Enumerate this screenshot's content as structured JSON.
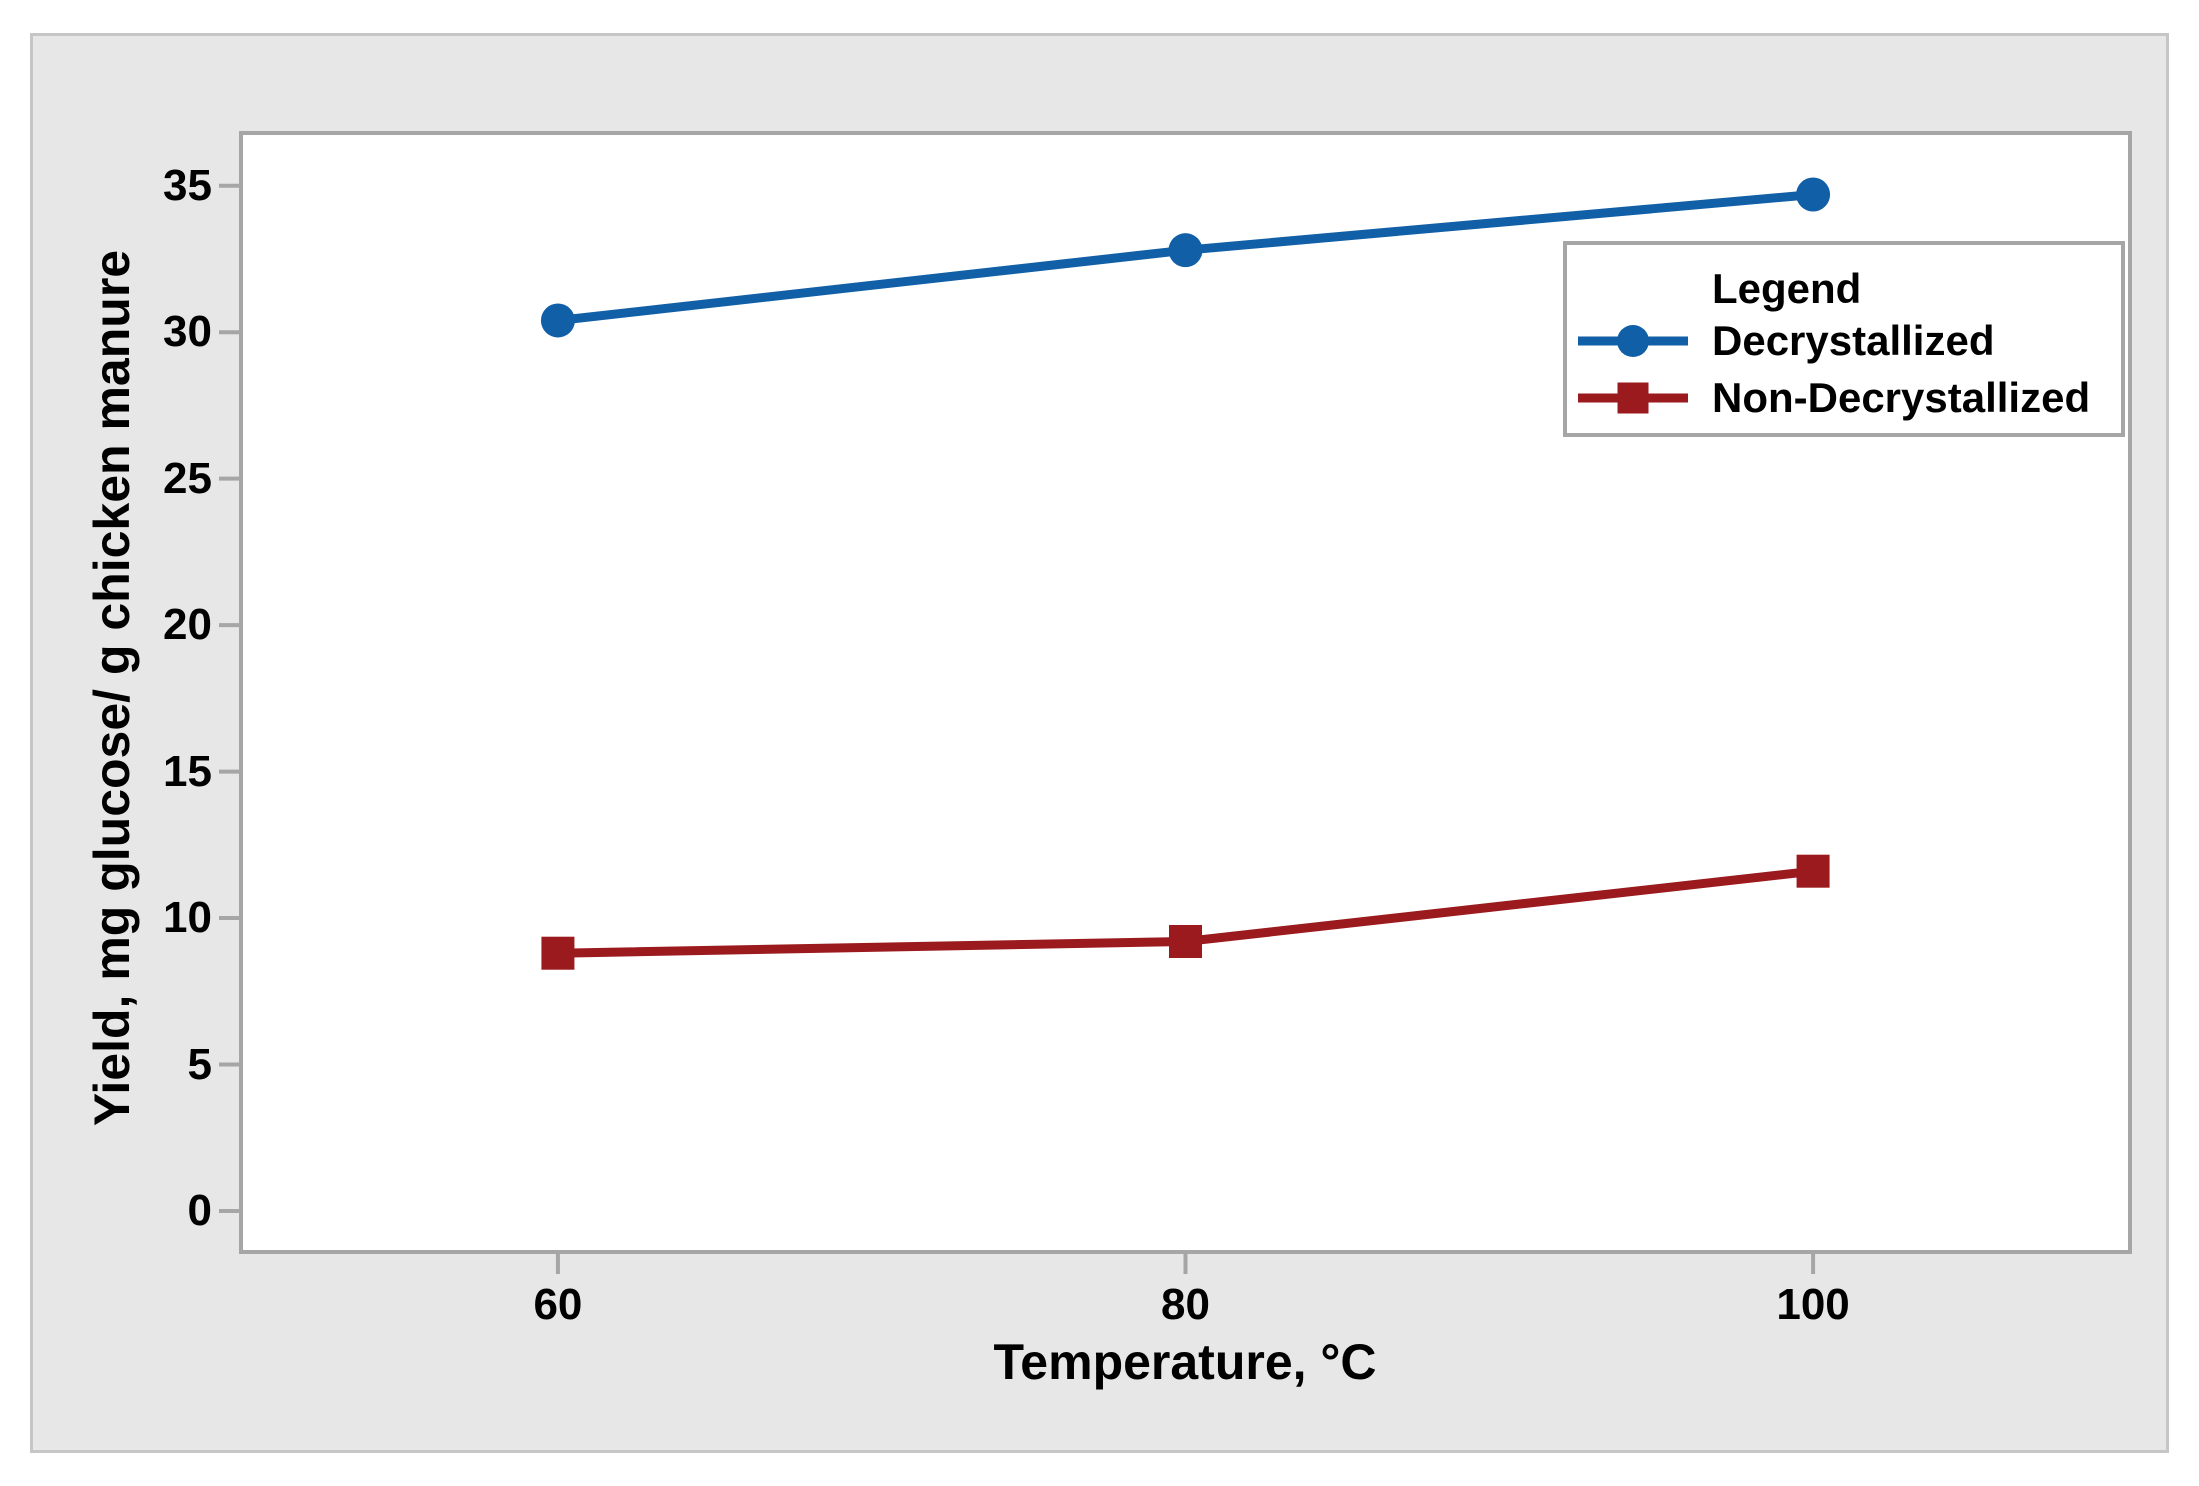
{
  "chart_data": {
    "type": "line",
    "x": [
      60,
      80,
      100
    ],
    "xticks": [
      60,
      80,
      100
    ],
    "yticks": [
      0,
      5,
      10,
      15,
      20,
      25,
      30,
      35
    ],
    "xlim": [
      49.9,
      110.1
    ],
    "ylim": [
      -1.4,
      36.8
    ],
    "xlabel": "Temperature, °C",
    "ylabel": "Yield, mg glucose/ g chicken manure",
    "grid": false,
    "legend_title": "Legend",
    "legend_position": "top-right-inside",
    "series": [
      {
        "name": "Decrystallized",
        "color": "#115FA6",
        "marker": "circle",
        "values": [
          30.4,
          32.8,
          34.7
        ]
      },
      {
        "name": "Non-Decrystallized",
        "color": "#9B1A1D",
        "marker": "square",
        "values": [
          8.8,
          9.2,
          11.6
        ]
      }
    ]
  },
  "styles": {
    "panel_background": "#E7E7E7",
    "panel_border": "#C6C6C6",
    "plot_background": "#FFFFFF",
    "frame_color": "#A6A6A6",
    "text_color": "#000000"
  }
}
